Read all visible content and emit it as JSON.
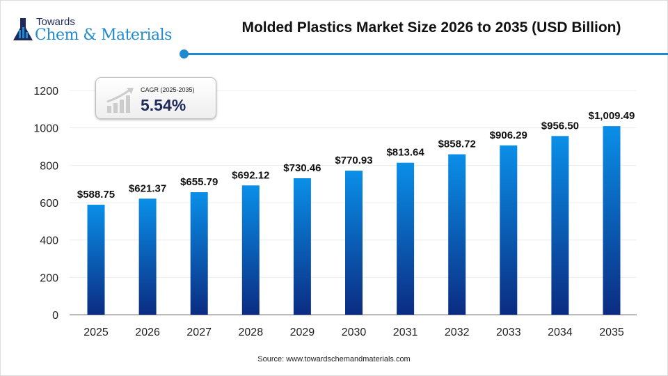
{
  "logo": {
    "top": "Towards",
    "main": "Chem & Materials"
  },
  "cagr": {
    "label": "CAGR (2025-2035)",
    "value": "5.54%"
  },
  "source": "Source: www.towardschemandmaterials.com",
  "colors": {
    "bar_top": "#0a8fe8",
    "bar_bottom": "#0b2c82",
    "accent": "#1e8bd0"
  },
  "chart_data": {
    "type": "bar",
    "title": "Molded Plastics Market Size 2026 to 2035 (USD Billion)",
    "xlabel": "",
    "ylabel": "",
    "categories": [
      "2025",
      "2026",
      "2027",
      "2028",
      "2029",
      "2030",
      "2031",
      "2032",
      "2033",
      "2034",
      "2035"
    ],
    "values": [
      588.75,
      621.37,
      655.79,
      692.12,
      730.46,
      770.93,
      813.64,
      858.72,
      906.29,
      956.5,
      1009.49
    ],
    "data_labels": [
      "$588.75",
      "$621.37",
      "$655.79",
      "$692.12",
      "$730.46",
      "$770.93",
      "$813.64",
      "$858.72",
      "$906.29",
      "$956.50",
      "$1,009.49"
    ],
    "ylim": [
      0,
      1200
    ],
    "yticks": [
      0,
      200,
      400,
      600,
      800,
      1000,
      1200
    ],
    "grid": true,
    "legend": "none"
  }
}
